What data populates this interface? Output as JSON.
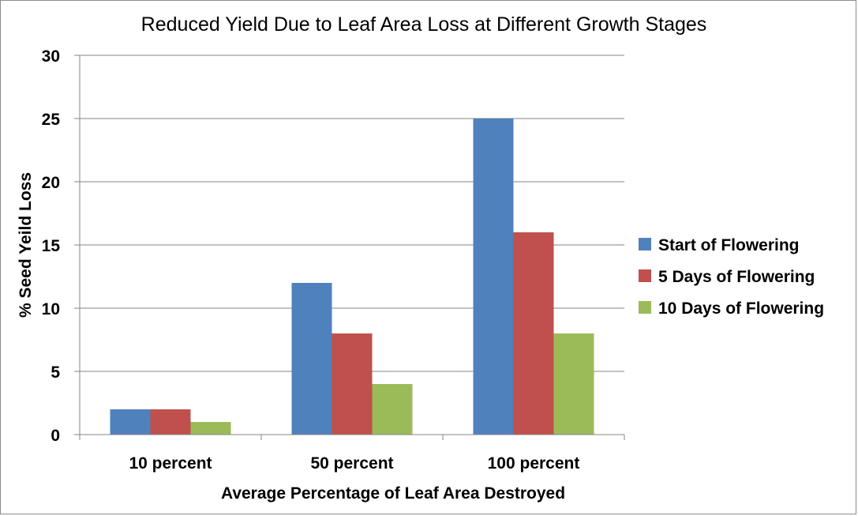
{
  "chart_data": {
    "type": "bar",
    "title": "Reduced Yield Due to Leaf Area Loss at Different Growth Stages",
    "xlabel": "Average Percentage of Leaf Area Destroyed",
    "ylabel": "% Seed Yeild Loss",
    "categories": [
      "10 percent",
      "50 percent",
      "100 percent"
    ],
    "series": [
      {
        "name": "Start of Flowering",
        "color": "#4f81bd",
        "values": [
          2,
          12,
          25
        ]
      },
      {
        "name": "5 Days of Flowering",
        "color": "#c0504d",
        "values": [
          2,
          8,
          16
        ]
      },
      {
        "name": "10 Days of Flowering",
        "color": "#9bbb59",
        "values": [
          1,
          4,
          8
        ]
      }
    ],
    "ylim": [
      0,
      30
    ],
    "yticks": [
      0,
      5,
      10,
      15,
      20,
      25,
      30
    ],
    "grid": true,
    "legend_position": "right"
  }
}
